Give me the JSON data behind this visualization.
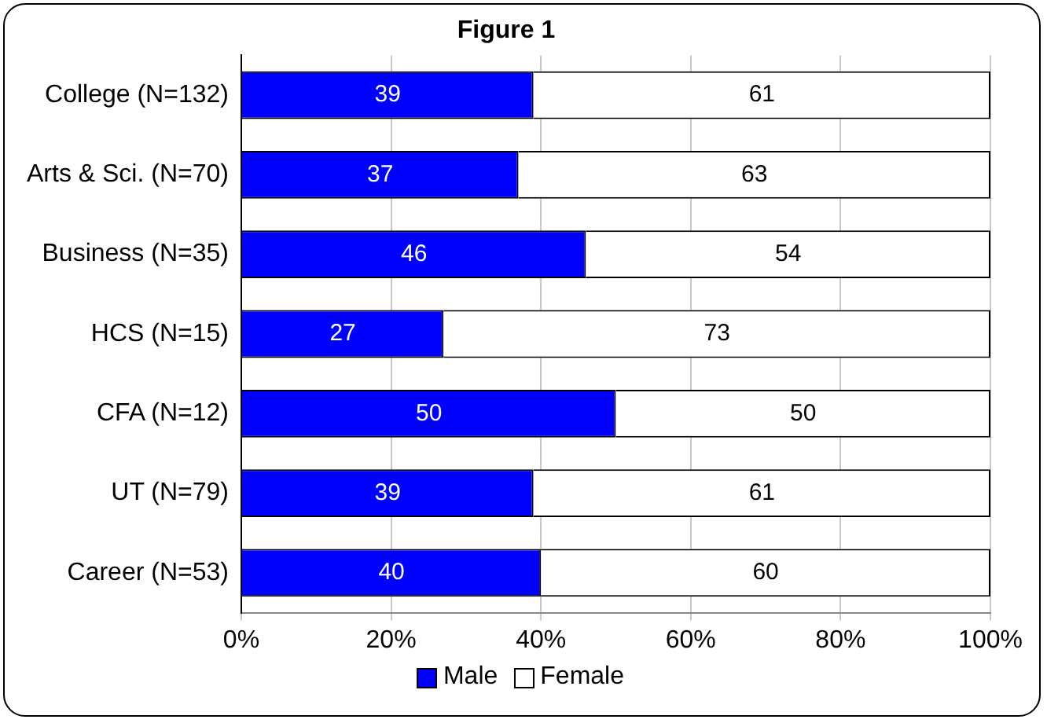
{
  "chart_data": {
    "type": "bar",
    "title": "Figure 1",
    "orientation": "horizontal",
    "stacked": true,
    "categories": [
      "College (N=132)",
      "Arts & Sci. (N=70)",
      "Business (N=35)",
      "HCS (N=15)",
      "CFA (N=12)",
      "UT (N=79)",
      "Career (N=53)"
    ],
    "series": [
      {
        "name": "Male",
        "color": "#0000ff",
        "values": [
          39,
          37,
          46,
          27,
          50,
          39,
          40
        ]
      },
      {
        "name": "Female",
        "color": "#ffffff",
        "values": [
          61,
          63,
          54,
          73,
          50,
          61,
          60
        ]
      }
    ],
    "xlim": [
      0,
      100
    ],
    "xticks": [
      {
        "value": 0,
        "label": "0%"
      },
      {
        "value": 20,
        "label": "20%"
      },
      {
        "value": 40,
        "label": "40%"
      },
      {
        "value": 60,
        "label": "60%"
      },
      {
        "value": 80,
        "label": "80%"
      },
      {
        "value": 100,
        "label": "100%"
      }
    ],
    "grid": "x",
    "legend": "bottom",
    "data_labels": true
  }
}
